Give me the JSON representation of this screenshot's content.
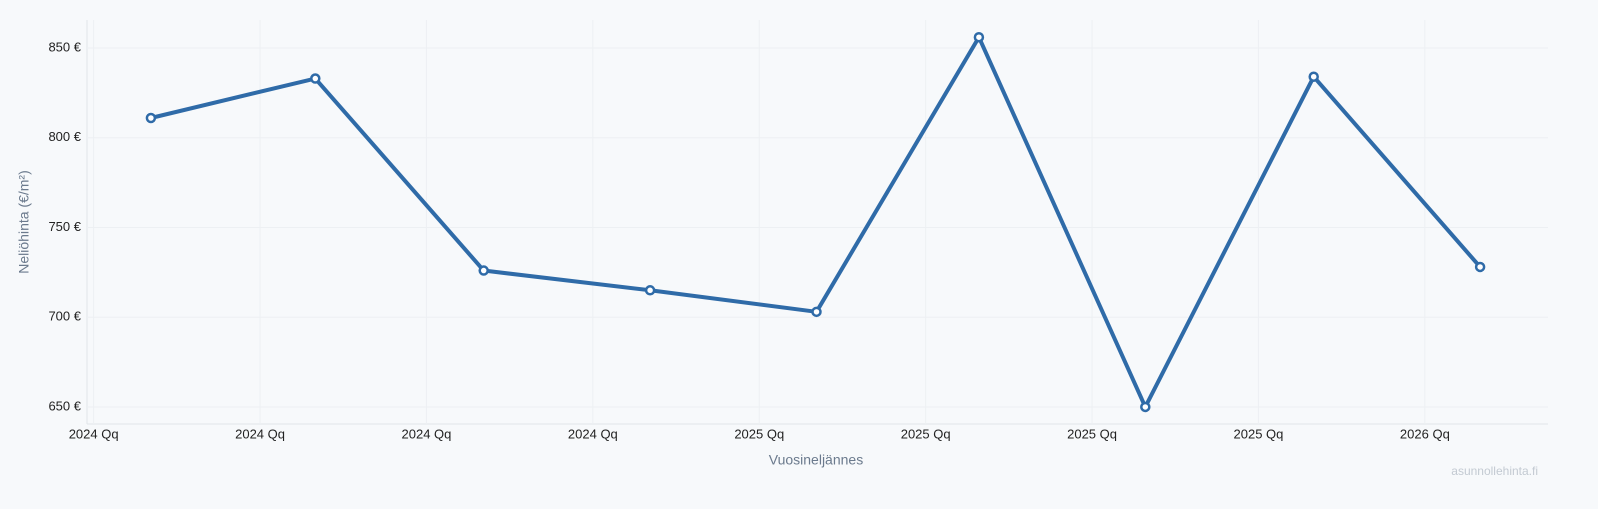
{
  "chart_data": {
    "type": "line",
    "y_label": "Neliöhinta (€/m²)",
    "x_label": "Vuosineljännes",
    "watermark": "asunnollehinta.fi",
    "x": [
      2024.086,
      2024.333,
      2024.586,
      2024.836,
      2025.086,
      2025.33,
      2025.58,
      2025.833,
      2026.083
    ],
    "series": [
      {
        "color": "#2f6ba8",
        "values": [
          811,
          833,
          726,
          715,
          703,
          856,
          650,
          834,
          728
        ]
      }
    ],
    "xlim": [
      2023.99,
      2026.185
    ],
    "xticks": [
      {
        "value": 2024,
        "label": "2024 Qq"
      },
      {
        "value": 2024.25,
        "label": "2024 Qq"
      },
      {
        "value": 2024.5,
        "label": "2024 Qq"
      },
      {
        "value": 2024.75,
        "label": "2024 Qq"
      },
      {
        "value": 2025,
        "label": "2025 Qq"
      },
      {
        "value": 2025.25,
        "label": "2025 Qq"
      },
      {
        "value": 2025.5,
        "label": "2025 Qq"
      },
      {
        "value": 2025.75,
        "label": "2025 Qq"
      },
      {
        "value": 2026,
        "label": "2026 Qq"
      }
    ],
    "ylim": [
      640.5,
      865.6
    ],
    "yticks": [
      {
        "value": 650,
        "label": "650 €"
      },
      {
        "value": 700,
        "label": "700 €"
      },
      {
        "value": 750,
        "label": "750 €"
      },
      {
        "value": 800,
        "label": "800 €"
      },
      {
        "value": 850,
        "label": "850 €"
      }
    ],
    "grid": true
  }
}
